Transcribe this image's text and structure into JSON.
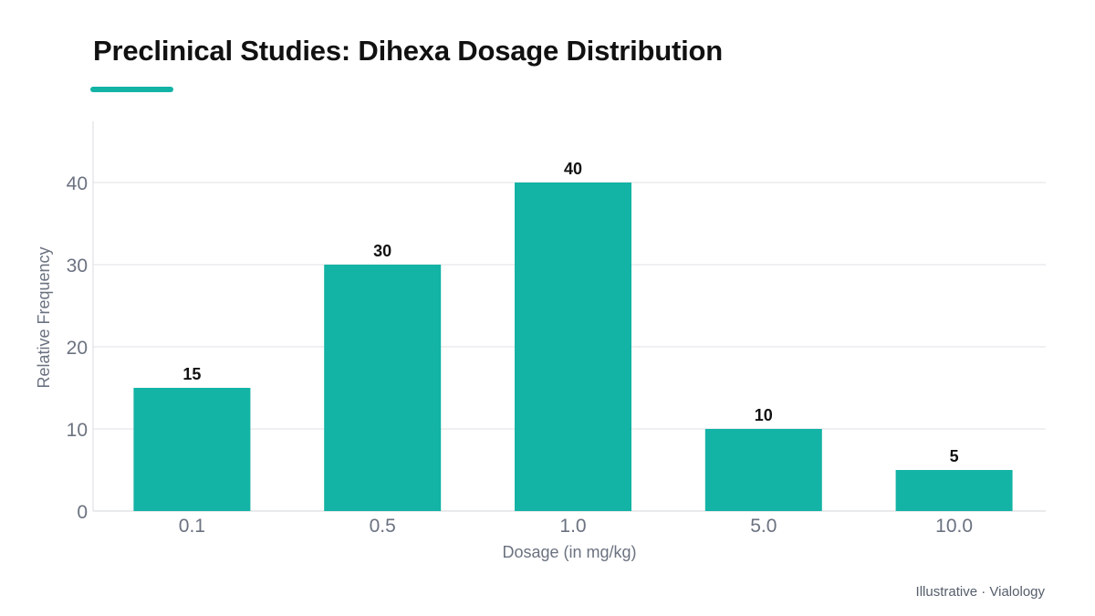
{
  "title": "Preclinical Studies: Dihexa Dosage Distribution",
  "footer": "Illustrative · Vialology",
  "colors": {
    "accent": "#13b3a5",
    "bar": "#13b3a5",
    "grid": "#e6e7ea",
    "axis_text": "#6b7280",
    "label_text": "#111111"
  },
  "chart_data": {
    "type": "bar",
    "categories": [
      "0.1",
      "0.5",
      "1.0",
      "5.0",
      "10.0"
    ],
    "values": [
      15,
      30,
      40,
      10,
      5
    ],
    "data_labels": [
      "15",
      "30",
      "40",
      "10",
      "5"
    ],
    "xlabel": "Dosage (in mg/kg)",
    "ylabel": "Relative Frequency",
    "ylim": [
      0,
      45
    ],
    "yticks": [
      0,
      10,
      20,
      30,
      40
    ],
    "grid": true,
    "legend": "none"
  }
}
